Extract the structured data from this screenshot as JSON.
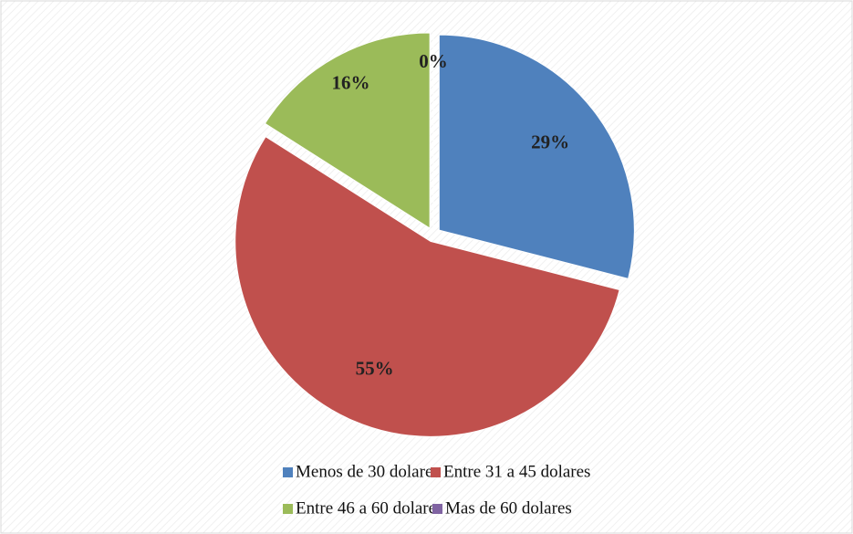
{
  "chart_data": {
    "type": "pie",
    "categories": [
      "Menos de 30 dolares",
      "Entre 31 a 45 dolares",
      "Entre 46 a 60 dolares",
      "Mas de 60 dolares"
    ],
    "values": [
      29,
      55,
      16,
      0
    ],
    "value_labels": [
      "29%",
      "55%",
      "16%",
      "0%"
    ],
    "colors": [
      "#4f81bd",
      "#c0504d",
      "#9bbb59",
      "#8064a2"
    ],
    "legend": "bottom"
  }
}
